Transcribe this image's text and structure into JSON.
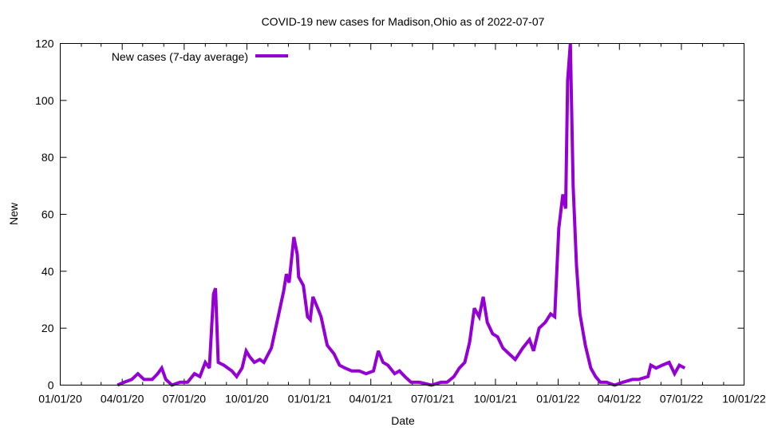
{
  "chart_data": {
    "type": "line",
    "title": "COVID-19 new cases for Madison,Ohio as of 2022-07-07",
    "xlabel": "Date",
    "ylabel": "New",
    "xlim": [
      "2020-01-01",
      "2022-10-01"
    ],
    "ylim": [
      0,
      120
    ],
    "yticks": [
      0,
      20,
      40,
      60,
      80,
      100,
      120
    ],
    "xticks": [
      {
        "date": "2020-01-01",
        "label": "01/01/20"
      },
      {
        "date": "2020-04-01",
        "label": "04/01/20"
      },
      {
        "date": "2020-07-01",
        "label": "07/01/20"
      },
      {
        "date": "2020-10-01",
        "label": "10/01/20"
      },
      {
        "date": "2021-01-01",
        "label": "01/01/21"
      },
      {
        "date": "2021-04-01",
        "label": "04/01/21"
      },
      {
        "date": "2021-07-01",
        "label": "07/01/21"
      },
      {
        "date": "2021-10-01",
        "label": "10/01/21"
      },
      {
        "date": "2022-01-01",
        "label": "01/01/22"
      },
      {
        "date": "2022-04-01",
        "label": "04/01/22"
      },
      {
        "date": "2022-07-01",
        "label": "07/01/22"
      },
      {
        "date": "2022-10-01",
        "label": "10/01/22"
      }
    ],
    "grid": false,
    "legend": {
      "position": "top-left",
      "entries": [
        "New cases (7-day average)"
      ]
    },
    "series": [
      {
        "name": "New cases (7-day average)",
        "color": "#9400d3",
        "points": [
          [
            "2020-03-25",
            0
          ],
          [
            "2020-04-04",
            1
          ],
          [
            "2020-04-15",
            2
          ],
          [
            "2020-04-24",
            4
          ],
          [
            "2020-05-03",
            2
          ],
          [
            "2020-05-15",
            2
          ],
          [
            "2020-05-23",
            4
          ],
          [
            "2020-05-29",
            6
          ],
          [
            "2020-06-04",
            2
          ],
          [
            "2020-06-13",
            0
          ],
          [
            "2020-06-25",
            1
          ],
          [
            "2020-07-06",
            1
          ],
          [
            "2020-07-16",
            4
          ],
          [
            "2020-07-24",
            3
          ],
          [
            "2020-08-01",
            8
          ],
          [
            "2020-08-07",
            6
          ],
          [
            "2020-08-13",
            32
          ],
          [
            "2020-08-16",
            34
          ],
          [
            "2020-08-20",
            8
          ],
          [
            "2020-08-28",
            7
          ],
          [
            "2020-09-09",
            5
          ],
          [
            "2020-09-16",
            3
          ],
          [
            "2020-09-24",
            6
          ],
          [
            "2020-09-30",
            12
          ],
          [
            "2020-10-05",
            10
          ],
          [
            "2020-10-12",
            8
          ],
          [
            "2020-10-20",
            9
          ],
          [
            "2020-10-26",
            8
          ],
          [
            "2020-11-06",
            13
          ],
          [
            "2020-11-16",
            24
          ],
          [
            "2020-11-24",
            33
          ],
          [
            "2020-11-28",
            39
          ],
          [
            "2020-12-02",
            36
          ],
          [
            "2020-12-09",
            52
          ],
          [
            "2020-12-14",
            46
          ],
          [
            "2020-12-16",
            38
          ],
          [
            "2020-12-23",
            35
          ],
          [
            "2020-12-29",
            24
          ],
          [
            "2021-01-02",
            23
          ],
          [
            "2021-01-06",
            31
          ],
          [
            "2021-01-13",
            27
          ],
          [
            "2021-01-18",
            24
          ],
          [
            "2021-01-27",
            14
          ],
          [
            "2021-02-06",
            11
          ],
          [
            "2021-02-14",
            7
          ],
          [
            "2021-02-22",
            6
          ],
          [
            "2021-03-04",
            5
          ],
          [
            "2021-03-15",
            5
          ],
          [
            "2021-03-25",
            4
          ],
          [
            "2021-04-05",
            5
          ],
          [
            "2021-04-12",
            12
          ],
          [
            "2021-04-19",
            8
          ],
          [
            "2021-04-26",
            7
          ],
          [
            "2021-05-06",
            4
          ],
          [
            "2021-05-13",
            5
          ],
          [
            "2021-05-21",
            3
          ],
          [
            "2021-05-30",
            1
          ],
          [
            "2021-06-11",
            1
          ],
          [
            "2021-06-29",
            0
          ],
          [
            "2021-07-13",
            1
          ],
          [
            "2021-07-22",
            1
          ],
          [
            "2021-08-01",
            3
          ],
          [
            "2021-08-09",
            6
          ],
          [
            "2021-08-17",
            8
          ],
          [
            "2021-08-24",
            15
          ],
          [
            "2021-08-31",
            27
          ],
          [
            "2021-09-07",
            24
          ],
          [
            "2021-09-13",
            31
          ],
          [
            "2021-09-19",
            22
          ],
          [
            "2021-09-27",
            18
          ],
          [
            "2021-10-04",
            17
          ],
          [
            "2021-10-12",
            13
          ],
          [
            "2021-10-30",
            9
          ],
          [
            "2021-11-10",
            13
          ],
          [
            "2021-11-20",
            16
          ],
          [
            "2021-11-26",
            12
          ],
          [
            "2021-12-04",
            20
          ],
          [
            "2021-12-13",
            22
          ],
          [
            "2021-12-21",
            25
          ],
          [
            "2021-12-27",
            24
          ],
          [
            "2022-01-02",
            55
          ],
          [
            "2022-01-08",
            67
          ],
          [
            "2022-01-12",
            62
          ],
          [
            "2022-01-15",
            107
          ],
          [
            "2022-01-19",
            120
          ],
          [
            "2022-01-23",
            70
          ],
          [
            "2022-01-28",
            42
          ],
          [
            "2022-02-02",
            25
          ],
          [
            "2022-02-10",
            14
          ],
          [
            "2022-02-18",
            6
          ],
          [
            "2022-02-25",
            3
          ],
          [
            "2022-03-04",
            1
          ],
          [
            "2022-03-13",
            1
          ],
          [
            "2022-03-25",
            0
          ],
          [
            "2022-04-06",
            1
          ],
          [
            "2022-04-20",
            2
          ],
          [
            "2022-04-29",
            2
          ],
          [
            "2022-05-13",
            3
          ],
          [
            "2022-05-17",
            7
          ],
          [
            "2022-05-25",
            6
          ],
          [
            "2022-06-03",
            7
          ],
          [
            "2022-06-13",
            8
          ],
          [
            "2022-06-21",
            4
          ],
          [
            "2022-06-28",
            7
          ],
          [
            "2022-07-06",
            6
          ]
        ]
      }
    ]
  }
}
